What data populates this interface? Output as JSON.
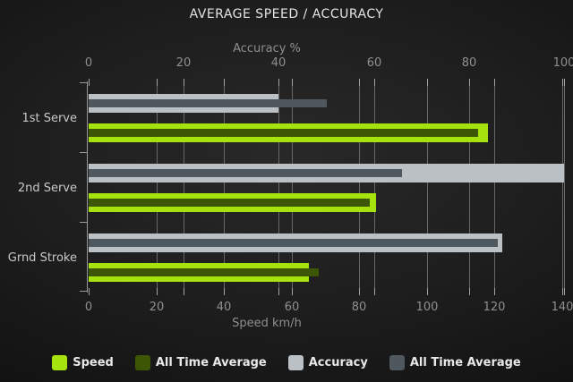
{
  "title": "AVERAGE SPEED / ACCURACY",
  "chart_data": {
    "type": "bar",
    "orientation": "horizontal",
    "title": "AVERAGE SPEED / ACCURACY",
    "categories": [
      "1st Serve",
      "2nd Serve",
      "Grnd Stroke"
    ],
    "series": [
      {
        "name": "Speed",
        "axis": "bottom",
        "color": "#a6e20e",
        "values": [
          118,
          85,
          65
        ]
      },
      {
        "name": "All Time Average",
        "axis": "bottom",
        "color": "#3c5606",
        "values": [
          115,
          83,
          68
        ]
      },
      {
        "name": "Accuracy",
        "axis": "top",
        "color": "#bac0c4",
        "values": [
          40,
          100,
          87
        ]
      },
      {
        "name": "All Time Average",
        "axis": "top",
        "color": "#4f575f",
        "values": [
          50,
          66,
          86
        ]
      }
    ],
    "top_axis": {
      "label": "Accuracy %",
      "ticks": [
        0,
        20,
        40,
        60,
        80,
        100
      ],
      "range": [
        0,
        100
      ]
    },
    "bottom_axis": {
      "label": "Speed km/h",
      "ticks": [
        0,
        20,
        40,
        60,
        80,
        100,
        120,
        140
      ],
      "range": [
        0,
        140
      ]
    },
    "grid": true,
    "legend_position": "bottom"
  },
  "legend": {
    "items": [
      {
        "label": "Speed",
        "color": "#a6e20e"
      },
      {
        "label": "All Time Average",
        "color": "#3c5606"
      },
      {
        "label": "Accuracy",
        "color": "#bac0c4"
      },
      {
        "label": "All Time Average",
        "color": "#4f575f"
      }
    ]
  },
  "colors": {
    "background_center": "#292929",
    "background_edge": "#111111",
    "grid": "#676767",
    "axis": "#9a9a9a",
    "text_muted": "#8f8f8f",
    "text_category": "#c9c9c9",
    "text_title": "#e4e4e4"
  }
}
